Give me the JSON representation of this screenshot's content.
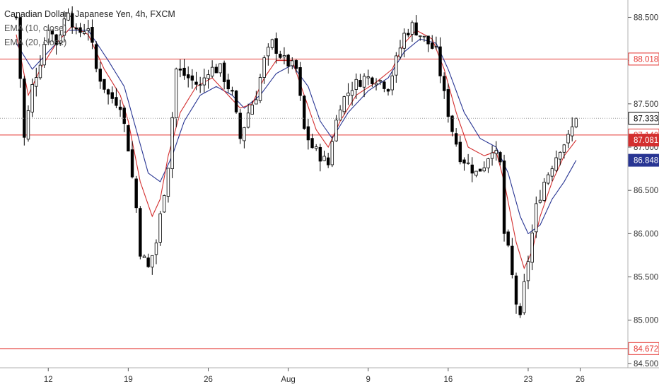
{
  "header": {
    "title": "Canadian Dollar / Japanese Yen, 4h, FXCM",
    "indicator1": "EMA (10, close)",
    "indicator2": "EMA (20, close)"
  },
  "colors": {
    "up_candle": "#ffffff",
    "down_candle": "#000000",
    "candle_border": "#000000",
    "ema10": "#d32f2f",
    "ema20": "#283593",
    "hline": "#e53935",
    "price_line": "#9e9e9e"
  },
  "chart_data": {
    "type": "candlestick",
    "title": "Canadian Dollar / Japanese Yen, 4h, FXCM",
    "y_ticks": [
      "88.500",
      "88.000",
      "87.500",
      "87.000",
      "86.500",
      "86.000",
      "85.500",
      "85.000",
      "84.500"
    ],
    "ylim": [
      84.45,
      88.7
    ],
    "x_ticks": [
      {
        "label": "12",
        "index": 7
      },
      {
        "label": "19",
        "index": 27
      },
      {
        "label": "26",
        "index": 47
      },
      {
        "label": "Aug",
        "index": 67
      },
      {
        "label": "9",
        "index": 87
      },
      {
        "label": "16",
        "index": 107
      },
      {
        "label": "23",
        "index": 127
      },
      {
        "label": "26",
        "index": 140
      }
    ],
    "horizontal_levels": [
      {
        "value": 88.018,
        "label": "88.018"
      },
      {
        "value": 87.14,
        "label": "87.140"
      },
      {
        "value": 84.672,
        "label": "84.672"
      }
    ],
    "price_badges": [
      {
        "value": 87.333,
        "label": "87.333",
        "style": "current"
      },
      {
        "value": 87.081,
        "label": "87.081",
        "style": "ema10"
      },
      {
        "value": 86.848,
        "label": "86.848",
        "style": "ema20"
      }
    ],
    "close_path": [
      {
        "i": 0,
        "v": 88.5
      },
      {
        "i": 2,
        "v": 87.1
      },
      {
        "i": 4,
        "v": 87.7
      },
      {
        "i": 6,
        "v": 88.0
      },
      {
        "i": 8,
        "v": 88.4
      },
      {
        "i": 10,
        "v": 88.2
      },
      {
        "i": 13,
        "v": 88.6
      },
      {
        "i": 15,
        "v": 88.3
      },
      {
        "i": 18,
        "v": 88.4
      },
      {
        "i": 20,
        "v": 87.9
      },
      {
        "i": 23,
        "v": 87.6
      },
      {
        "i": 26,
        "v": 87.5
      },
      {
        "i": 28,
        "v": 87.0
      },
      {
        "i": 30,
        "v": 86.3
      },
      {
        "i": 31,
        "v": 85.8
      },
      {
        "i": 33,
        "v": 85.6
      },
      {
        "i": 35,
        "v": 85.9
      },
      {
        "i": 37,
        "v": 86.5
      },
      {
        "i": 38,
        "v": 86.8
      },
      {
        "i": 40,
        "v": 87.9
      },
      {
        "i": 43,
        "v": 87.8
      },
      {
        "i": 46,
        "v": 87.7
      },
      {
        "i": 48,
        "v": 87.9
      },
      {
        "i": 51,
        "v": 87.9
      },
      {
        "i": 54,
        "v": 87.6
      },
      {
        "i": 56,
        "v": 87.1
      },
      {
        "i": 58,
        "v": 87.4
      },
      {
        "i": 60,
        "v": 87.6
      },
      {
        "i": 62,
        "v": 88.0
      },
      {
        "i": 64,
        "v": 88.2
      },
      {
        "i": 67,
        "v": 88.0
      },
      {
        "i": 70,
        "v": 87.9
      },
      {
        "i": 72,
        "v": 87.2
      },
      {
        "i": 74,
        "v": 87.0
      },
      {
        "i": 76,
        "v": 86.9
      },
      {
        "i": 78,
        "v": 86.8
      },
      {
        "i": 79,
        "v": 87.1
      },
      {
        "i": 81,
        "v": 87.5
      },
      {
        "i": 84,
        "v": 87.7
      },
      {
        "i": 87,
        "v": 87.8
      },
      {
        "i": 90,
        "v": 87.8
      },
      {
        "i": 93,
        "v": 87.7
      },
      {
        "i": 95,
        "v": 88.0
      },
      {
        "i": 97,
        "v": 88.3
      },
      {
        "i": 99,
        "v": 88.4
      },
      {
        "i": 101,
        "v": 88.3
      },
      {
        "i": 103,
        "v": 88.2
      },
      {
        "i": 105,
        "v": 88.1
      },
      {
        "i": 107,
        "v": 87.6
      },
      {
        "i": 109,
        "v": 87.2
      },
      {
        "i": 111,
        "v": 86.9
      },
      {
        "i": 113,
        "v": 86.8
      },
      {
        "i": 115,
        "v": 86.7
      },
      {
        "i": 117,
        "v": 86.8
      },
      {
        "i": 119,
        "v": 87.0
      },
      {
        "i": 121,
        "v": 86.8
      },
      {
        "i": 122,
        "v": 86.0
      },
      {
        "i": 123,
        "v": 85.8
      },
      {
        "i": 124,
        "v": 85.5
      },
      {
        "i": 125,
        "v": 85.2
      },
      {
        "i": 126,
        "v": 85.0
      },
      {
        "i": 127,
        "v": 85.4
      },
      {
        "i": 128,
        "v": 85.7
      },
      {
        "i": 130,
        "v": 86.3
      },
      {
        "i": 132,
        "v": 86.6
      },
      {
        "i": 134,
        "v": 86.8
      },
      {
        "i": 136,
        "v": 87.0
      },
      {
        "i": 138,
        "v": 87.1
      },
      {
        "i": 140,
        "v": 87.333
      }
    ],
    "ema10_path": [
      {
        "i": 0,
        "v": 88.3
      },
      {
        "i": 3,
        "v": 87.6
      },
      {
        "i": 6,
        "v": 87.9
      },
      {
        "i": 10,
        "v": 88.2
      },
      {
        "i": 14,
        "v": 88.4
      },
      {
        "i": 18,
        "v": 88.3
      },
      {
        "i": 22,
        "v": 87.9
      },
      {
        "i": 26,
        "v": 87.6
      },
      {
        "i": 28,
        "v": 87.3
      },
      {
        "i": 31,
        "v": 86.6
      },
      {
        "i": 34,
        "v": 86.2
      },
      {
        "i": 36,
        "v": 86.4
      },
      {
        "i": 38,
        "v": 86.9
      },
      {
        "i": 41,
        "v": 87.4
      },
      {
        "i": 45,
        "v": 87.7
      },
      {
        "i": 49,
        "v": 87.8
      },
      {
        "i": 53,
        "v": 87.6
      },
      {
        "i": 56,
        "v": 87.45
      },
      {
        "i": 59,
        "v": 87.5
      },
      {
        "i": 62,
        "v": 87.8
      },
      {
        "i": 65,
        "v": 88.0
      },
      {
        "i": 69,
        "v": 88.0
      },
      {
        "i": 72,
        "v": 87.6
      },
      {
        "i": 75,
        "v": 87.2
      },
      {
        "i": 78,
        "v": 87.0
      },
      {
        "i": 81,
        "v": 87.3
      },
      {
        "i": 85,
        "v": 87.6
      },
      {
        "i": 90,
        "v": 87.75
      },
      {
        "i": 94,
        "v": 87.9
      },
      {
        "i": 97,
        "v": 88.2
      },
      {
        "i": 100,
        "v": 88.35
      },
      {
        "i": 104,
        "v": 88.25
      },
      {
        "i": 107,
        "v": 87.9
      },
      {
        "i": 110,
        "v": 87.4
      },
      {
        "i": 113,
        "v": 87.0
      },
      {
        "i": 117,
        "v": 86.9
      },
      {
        "i": 120,
        "v": 86.95
      },
      {
        "i": 122,
        "v": 86.6
      },
      {
        "i": 125,
        "v": 85.9
      },
      {
        "i": 127,
        "v": 85.6
      },
      {
        "i": 129,
        "v": 85.8
      },
      {
        "i": 131,
        "v": 86.2
      },
      {
        "i": 134,
        "v": 86.6
      },
      {
        "i": 137,
        "v": 86.9
      },
      {
        "i": 140,
        "v": 87.081
      }
    ],
    "ema20_path": [
      {
        "i": 0,
        "v": 88.2
      },
      {
        "i": 4,
        "v": 87.9
      },
      {
        "i": 8,
        "v": 88.1
      },
      {
        "i": 13,
        "v": 88.35
      },
      {
        "i": 18,
        "v": 88.35
      },
      {
        "i": 23,
        "v": 88.0
      },
      {
        "i": 27,
        "v": 87.7
      },
      {
        "i": 30,
        "v": 87.2
      },
      {
        "i": 33,
        "v": 86.7
      },
      {
        "i": 36,
        "v": 86.6
      },
      {
        "i": 39,
        "v": 86.9
      },
      {
        "i": 42,
        "v": 87.3
      },
      {
        "i": 46,
        "v": 87.6
      },
      {
        "i": 50,
        "v": 87.7
      },
      {
        "i": 54,
        "v": 87.6
      },
      {
        "i": 57,
        "v": 87.45
      },
      {
        "i": 61,
        "v": 87.6
      },
      {
        "i": 65,
        "v": 87.85
      },
      {
        "i": 69,
        "v": 87.95
      },
      {
        "i": 73,
        "v": 87.7
      },
      {
        "i": 76,
        "v": 87.3
      },
      {
        "i": 79,
        "v": 87.1
      },
      {
        "i": 83,
        "v": 87.4
      },
      {
        "i": 88,
        "v": 87.65
      },
      {
        "i": 93,
        "v": 87.8
      },
      {
        "i": 97,
        "v": 88.1
      },
      {
        "i": 101,
        "v": 88.25
      },
      {
        "i": 105,
        "v": 88.2
      },
      {
        "i": 108,
        "v": 87.9
      },
      {
        "i": 112,
        "v": 87.4
      },
      {
        "i": 116,
        "v": 87.1
      },
      {
        "i": 120,
        "v": 87.0
      },
      {
        "i": 123,
        "v": 86.7
      },
      {
        "i": 126,
        "v": 86.2
      },
      {
        "i": 128,
        "v": 86.0
      },
      {
        "i": 131,
        "v": 86.1
      },
      {
        "i": 134,
        "v": 86.4
      },
      {
        "i": 137,
        "v": 86.6
      },
      {
        "i": 140,
        "v": 86.848
      }
    ]
  }
}
